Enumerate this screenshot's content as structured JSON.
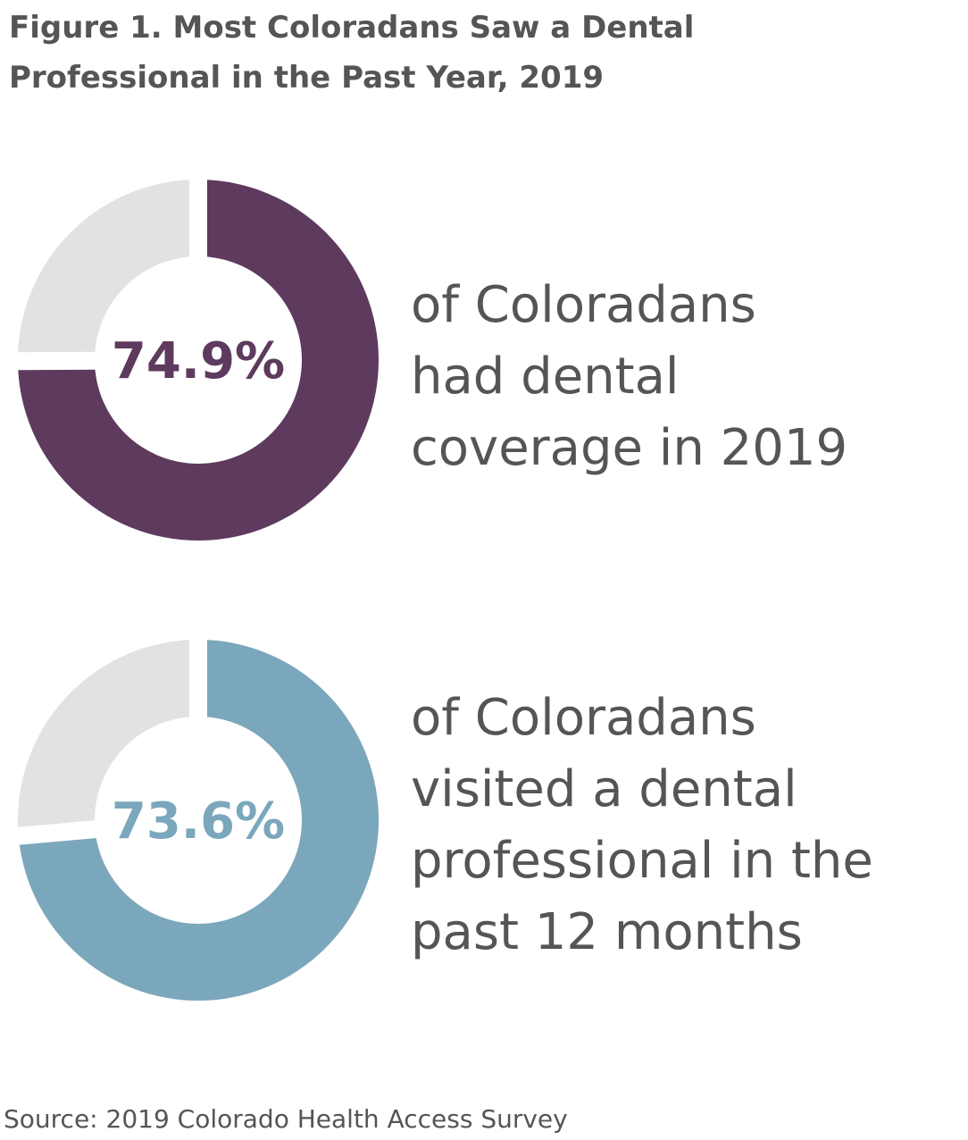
{
  "title": [
    "Figure 1. Most Coloradans Saw a Dental",
    "Professional in the Past Year, 2019"
  ],
  "source": "Source: 2019 Colorado Health Access Survey",
  "chart_data": [
    {
      "type": "donut",
      "values": [
        74.9
      ],
      "value_labels": [
        "74.9%"
      ],
      "color": "#5d3a5e",
      "ylim": [
        0,
        100
      ],
      "label_lines": [
        "of Coloradans",
        "had dental",
        "coverage in 2019"
      ]
    },
    {
      "type": "donut",
      "values": [
        73.6
      ],
      "value_labels": [
        "73.6%"
      ],
      "color": "#7ba7bc",
      "ylim": [
        0,
        100
      ],
      "label_lines": [
        "of Coloradans",
        "visited a dental",
        "professional in the",
        "past 12 months"
      ]
    }
  ]
}
